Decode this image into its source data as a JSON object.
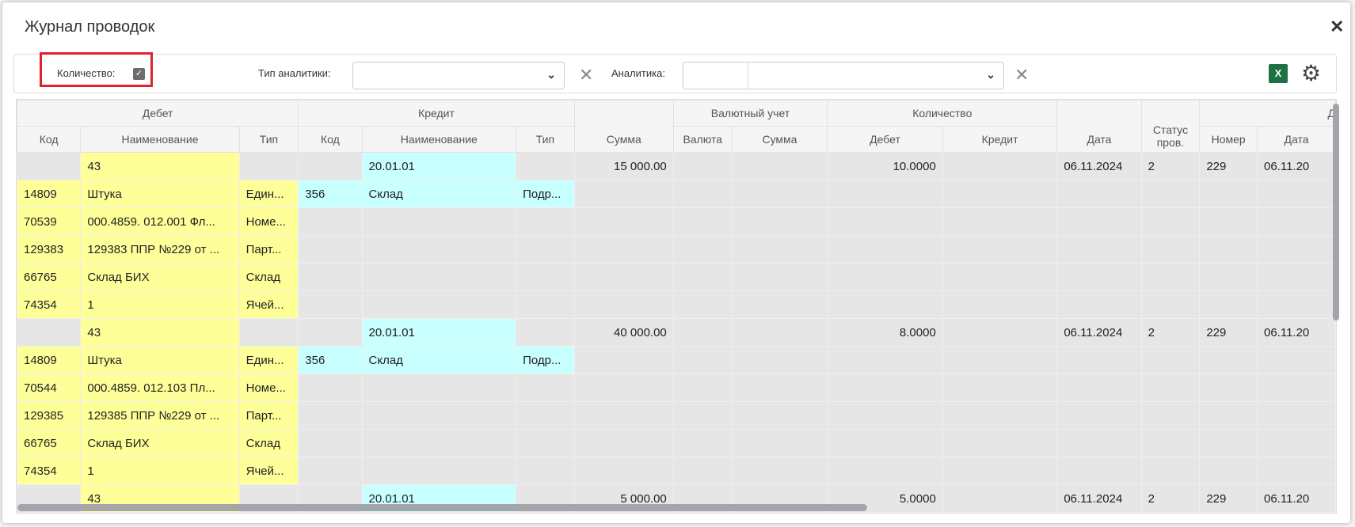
{
  "modal": {
    "title": "Журнал проводок",
    "close_icon": "close-icon"
  },
  "filters": {
    "quantity_label": "Количество:",
    "quantity_checked": true,
    "analytics_type_label": "Тип аналитики:",
    "analytics_type_value": "",
    "analytics_label": "Аналитика:",
    "analytics_value": "",
    "excel_label": "X",
    "accent_excel": "#1e7145",
    "highlight": "#e0222b"
  },
  "table": {
    "group_headers": {
      "debit": "Дебет",
      "credit": "Кредит",
      "currency": "Валютный учет",
      "quantity": "Количество",
      "doc": "Д"
    },
    "headers": {
      "d_code": "Код",
      "d_name": "Наименование",
      "d_type": "Тип",
      "c_code": "Код",
      "c_name": "Наименование",
      "c_type": "Тип",
      "sum": "Сумма",
      "cur": "Валюта",
      "cur_sum": "Сумма",
      "q_debit": "Дебет",
      "q_credit": "Кредит",
      "date": "Дата",
      "status": "Статус пров.",
      "num": "Номер",
      "doc_date": "Дата"
    },
    "entries": [
      {
        "debit_account": "43",
        "credit_account": "20.01.01",
        "sum": "15 000.00",
        "qty_debit": "10.0000",
        "date": "06.11.2024",
        "status": "2",
        "number": "229",
        "doc_date": "06.11.20",
        "credit_analytics": {
          "code": "356",
          "name": "Склад",
          "type": "Подр..."
        },
        "debit_analytics": [
          [
            "14809",
            "Штука",
            "Един..."
          ],
          [
            "70539",
            "000.4859. 012.001 Фл...",
            "Номе..."
          ],
          [
            "129383",
            "129383 ППР №229 от ...",
            "Парт..."
          ],
          [
            "66765",
            "Склад БИХ",
            "Склад"
          ],
          [
            "74354",
            "1",
            "Ячей..."
          ]
        ]
      },
      {
        "debit_account": "43",
        "credit_account": "20.01.01",
        "sum": "40 000.00",
        "qty_debit": "8.0000",
        "date": "06.11.2024",
        "status": "2",
        "number": "229",
        "doc_date": "06.11.20",
        "credit_analytics": {
          "code": "356",
          "name": "Склад",
          "type": "Подр..."
        },
        "debit_analytics": [
          [
            "14809",
            "Штука",
            "Един..."
          ],
          [
            "70544",
            "000.4859. 012.103 Пл...",
            "Номе..."
          ],
          [
            "129385",
            "129385 ППР №229 от ...",
            "Парт..."
          ],
          [
            "66765",
            "Склад БИХ",
            "Склад"
          ],
          [
            "74354",
            "1",
            "Ячей..."
          ]
        ]
      },
      {
        "debit_account": "43",
        "credit_account": "20.01.01",
        "sum": "5 000.00",
        "qty_debit": "5.0000",
        "date": "06.11.2024",
        "status": "2",
        "number": "229",
        "doc_date": "06.11.20",
        "credit_analytics": null,
        "debit_analytics": []
      }
    ],
    "colors": {
      "debit": "#ffff99",
      "credit": "#c8ffff",
      "row": "#e6e6e6"
    }
  }
}
